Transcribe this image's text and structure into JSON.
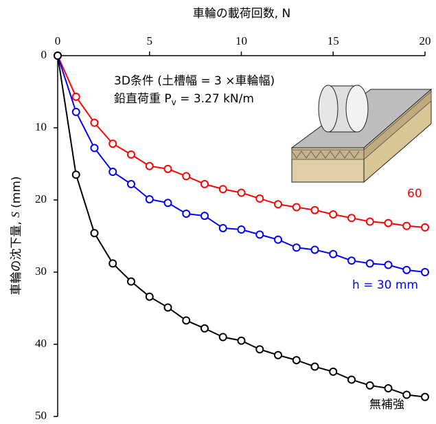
{
  "chart_data": {
    "type": "line",
    "x_label": "車輪の載荷回数, N",
    "y_label_parts": [
      "車輪の沈下量, ",
      "S",
      " (mm)"
    ],
    "annotations": [
      {
        "parts": [
          "3D条件 (土槽幅 = 3 ×車輪幅)"
        ]
      },
      {
        "parts": [
          "鉛直荷重 P",
          "v",
          " = 3.27 kN/m"
        ]
      }
    ],
    "x": [
      0,
      1,
      2,
      3,
      4,
      5,
      6,
      7,
      8,
      9,
      10,
      11,
      12,
      13,
      14,
      15,
      16,
      17,
      18,
      19,
      20
    ],
    "series": [
      {
        "name": "60",
        "color": "#ff0000",
        "values": [
          0,
          5.7,
          9.3,
          12.2,
          13.7,
          15.3,
          15.7,
          16.7,
          17.8,
          18.5,
          19.0,
          19.8,
          20.6,
          21.0,
          21.4,
          22.0,
          22.5,
          23.0,
          23.2,
          23.6,
          23.8
        ]
      },
      {
        "name": "h = 30 mm",
        "color": "#0000ff",
        "values": [
          0,
          7.8,
          12.8,
          16.1,
          17.8,
          19.9,
          20.4,
          21.9,
          22.2,
          23.9,
          24.1,
          24.8,
          25.5,
          26.6,
          26.9,
          27.5,
          28.4,
          28.8,
          29.0,
          29.7,
          30.0
        ]
      },
      {
        "name": "無補強",
        "color": "#000000",
        "values": [
          0,
          16.5,
          24.6,
          28.8,
          31.3,
          33.4,
          34.9,
          36.7,
          37.8,
          39.0,
          39.5,
          40.7,
          41.5,
          42.2,
          43.1,
          43.8,
          44.9,
          45.7,
          46.1,
          47.0,
          47.3
        ]
      }
    ],
    "xlim": [
      0,
      20
    ],
    "xticks": [
      0,
      5,
      10,
      15,
      20
    ],
    "ylim": [
      0,
      50
    ],
    "yticks": [
      0,
      10,
      20,
      30,
      40,
      50
    ],
    "y_inverted": true
  }
}
